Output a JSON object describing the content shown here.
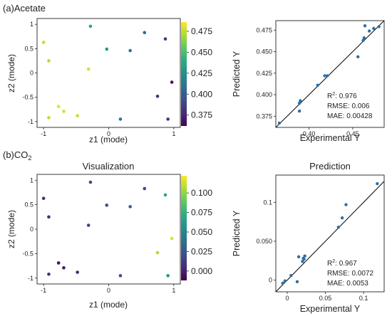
{
  "panels": {
    "a": {
      "label": "(a)Acetate"
    },
    "b": {
      "label_main": "(b)CO",
      "label_sub": "2"
    }
  },
  "chart_data": [
    {
      "id": "a-left",
      "type": "scatter",
      "title": "",
      "xlabel": "z1 (mode)",
      "ylabel": "z2 (mode)",
      "xlim": [
        -1.1,
        1.1
      ],
      "ylim": [
        -1.12,
        1.12
      ],
      "xticks": [
        -1,
        0,
        1
      ],
      "yticks": [
        -1,
        -0.5,
        0,
        0.5,
        1
      ],
      "colorbar": {
        "min": 0.362,
        "max": 0.486,
        "ticks": [
          0.375,
          0.4,
          0.425,
          0.45,
          0.475
        ],
        "tick_labels": [
          "0.375",
          "0.400",
          "0.425",
          "0.450",
          "0.475"
        ]
      },
      "points": [
        {
          "x": -0.28,
          "y": 0.96,
          "v": 0.437
        },
        {
          "x": 0.55,
          "y": 0.83,
          "v": 0.405
        },
        {
          "x": 0.87,
          "y": 0.7,
          "v": 0.383
        },
        {
          "x": -1.0,
          "y": 0.63,
          "v": 0.475
        },
        {
          "x": -0.03,
          "y": 0.49,
          "v": 0.43
        },
        {
          "x": 0.33,
          "y": 0.46,
          "v": 0.412
        },
        {
          "x": -0.92,
          "y": 0.25,
          "v": 0.472
        },
        {
          "x": -0.31,
          "y": 0.08,
          "v": 0.478
        },
        {
          "x": 0.97,
          "y": -0.19,
          "v": 0.368
        },
        {
          "x": 0.75,
          "y": -0.48,
          "v": 0.38
        },
        {
          "x": -0.77,
          "y": -0.69,
          "v": 0.48
        },
        {
          "x": -0.69,
          "y": -0.79,
          "v": 0.478
        },
        {
          "x": -0.48,
          "y": -0.88,
          "v": 0.476
        },
        {
          "x": -0.92,
          "y": -0.92,
          "v": 0.474
        },
        {
          "x": 0.18,
          "y": -0.95,
          "v": 0.41
        },
        {
          "x": 0.91,
          "y": -0.95,
          "v": 0.38
        }
      ]
    },
    {
      "id": "a-right",
      "type": "scatter",
      "title": "",
      "xlabel": "Experimental Y",
      "ylabel": "Predicted Y",
      "xlim": [
        0.362,
        0.486
      ],
      "ylim": [
        0.362,
        0.486
      ],
      "xticks": [
        0.4,
        0.45
      ],
      "xtick_labels": [
        "0.40",
        "0.45"
      ],
      "yticks": [
        0.375,
        0.4,
        0.425,
        0.45,
        0.475
      ],
      "ytick_labels": [
        "0.375",
        "0.400",
        "0.425",
        "0.450",
        "0.475"
      ],
      "stats": {
        "r2_label": "R",
        "r2_sup": "2",
        "r2_value": ": 0.976",
        "rmse": "RMSE: 0.006",
        "mae": "MAE: 0.00428"
      },
      "reference_line": "y = x",
      "points": [
        {
          "x": 0.366,
          "y": 0.367
        },
        {
          "x": 0.389,
          "y": 0.381
        },
        {
          "x": 0.389,
          "y": 0.39
        },
        {
          "x": 0.39,
          "y": 0.393
        },
        {
          "x": 0.41,
          "y": 0.411
        },
        {
          "x": 0.418,
          "y": 0.422
        },
        {
          "x": 0.421,
          "y": 0.422
        },
        {
          "x": 0.456,
          "y": 0.444
        },
        {
          "x": 0.462,
          "y": 0.463
        },
        {
          "x": 0.463,
          "y": 0.466
        },
        {
          "x": 0.464,
          "y": 0.48
        },
        {
          "x": 0.469,
          "y": 0.474
        },
        {
          "x": 0.474,
          "y": 0.477
        },
        {
          "x": 0.48,
          "y": 0.479
        }
      ]
    },
    {
      "id": "b-left",
      "type": "scatter",
      "title": "Visualization",
      "xlabel": "z1 (mode)",
      "ylabel": "z2 (mode)",
      "xlim": [
        -1.1,
        1.1
      ],
      "ylim": [
        -1.12,
        1.12
      ],
      "xticks": [
        -1,
        0,
        1
      ],
      "yticks": [
        -1,
        -0.5,
        0,
        0.5,
        1
      ],
      "colorbar": {
        "min": -0.012,
        "max": 0.122,
        "ticks": [
          0.0,
          0.025,
          0.05,
          0.075,
          0.1
        ],
        "tick_labels": [
          "0.000",
          "0.025",
          "0.050",
          "0.075",
          "0.100"
        ]
      },
      "points": [
        {
          "x": -0.28,
          "y": 0.96,
          "v": 0.018
        },
        {
          "x": 0.55,
          "y": 0.83,
          "v": 0.02
        },
        {
          "x": 0.87,
          "y": 0.7,
          "v": 0.068
        },
        {
          "x": -1.0,
          "y": 0.63,
          "v": 0.008
        },
        {
          "x": -0.03,
          "y": 0.49,
          "v": 0.022
        },
        {
          "x": 0.33,
          "y": 0.46,
          "v": 0.025
        },
        {
          "x": -0.92,
          "y": 0.25,
          "v": 0.005
        },
        {
          "x": -0.31,
          "y": 0.08,
          "v": 0.012
        },
        {
          "x": 0.97,
          "y": -0.19,
          "v": 0.115
        },
        {
          "x": 0.75,
          "y": -0.48,
          "v": 0.105
        },
        {
          "x": -0.77,
          "y": -0.69,
          "v": -0.005
        },
        {
          "x": -0.69,
          "y": -0.79,
          "v": -0.002
        },
        {
          "x": -0.48,
          "y": -0.88,
          "v": 0.002
        },
        {
          "x": -0.92,
          "y": -0.92,
          "v": 0.004
        },
        {
          "x": 0.18,
          "y": -0.95,
          "v": 0.022
        },
        {
          "x": 0.91,
          "y": -0.95,
          "v": 0.06
        }
      ]
    },
    {
      "id": "b-right",
      "type": "scatter",
      "title": "Prediction",
      "xlabel": "Experimental Y",
      "ylabel": "Predicted Y",
      "xlim": [
        -0.015,
        0.127
      ],
      "ylim": [
        -0.015,
        0.135
      ],
      "xticks": [
        0,
        0.05,
        0.1
      ],
      "xtick_labels": [
        "0",
        "0.05",
        "0.1"
      ],
      "yticks": [
        0,
        0.05,
        0.1
      ],
      "ytick_labels": [
        "0",
        "0.050",
        "0.1"
      ],
      "stats": {
        "r2_label": "R",
        "r2_sup": "2",
        "r2_value": ": 0.967",
        "rmse": "RMSE: 0.0072",
        "mae": "MAE: 0.0053"
      },
      "reference_line": "y = x",
      "points": [
        {
          "x": -0.006,
          "y": -0.004
        },
        {
          "x": -0.003,
          "y": -0.001
        },
        {
          "x": 0.005,
          "y": 0.006
        },
        {
          "x": 0.013,
          "y": -0.002
        },
        {
          "x": 0.015,
          "y": 0.03
        },
        {
          "x": 0.02,
          "y": 0.024
        },
        {
          "x": 0.021,
          "y": 0.028
        },
        {
          "x": 0.022,
          "y": 0.027
        },
        {
          "x": 0.023,
          "y": 0.031
        },
        {
          "x": 0.067,
          "y": 0.068
        },
        {
          "x": 0.072,
          "y": 0.08
        },
        {
          "x": 0.077,
          "y": 0.097
        },
        {
          "x": 0.118,
          "y": 0.124
        }
      ]
    }
  ]
}
